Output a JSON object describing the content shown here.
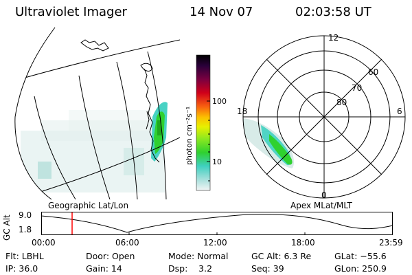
{
  "header": {
    "instrument": "Ultraviolet Imager",
    "date": "14 Nov 07",
    "time": "02:03:58 UT"
  },
  "colors": {
    "aurora_bright": "#2fd12f",
    "aurora_mid": "#3fd0c0",
    "aurora_faint": "#d4e8e6",
    "track_marker": "#ff0000",
    "background": "#ffffff"
  },
  "colorbar": {
    "unit_label": "photon cm⁻²s⁻¹",
    "ticks": [
      "100",
      "10"
    ],
    "scale": "log"
  },
  "geo_panel": {
    "caption": "Geographic Lat/Lon"
  },
  "polar_panel": {
    "caption": "Apex MLat/MLT",
    "mlt_labels": [
      "12",
      "18",
      "6",
      "0"
    ],
    "mlat_labels": [
      "60",
      "70",
      "80"
    ]
  },
  "altitude_plot": {
    "axis_label": "GC Alt",
    "y_ticks": [
      "9.0",
      "1.8"
    ],
    "x_ticks": [
      "00:00",
      "06:00",
      "12:00",
      "18:00",
      "23:59"
    ],
    "marker_time": "02:03:58"
  },
  "status": {
    "filter": "Flt: LBHL",
    "door": "Door: Open",
    "mode": "Mode: Normal",
    "gc_alt": "GC Alt: 6.3 Re",
    "glat": "GLat: −55.6",
    "ip": "IP: 36.0",
    "gain": "Gain: 14",
    "dsp": "Dsp:    3.2",
    "seq": "Seq: 39",
    "glon": "GLon: 250.9"
  }
}
